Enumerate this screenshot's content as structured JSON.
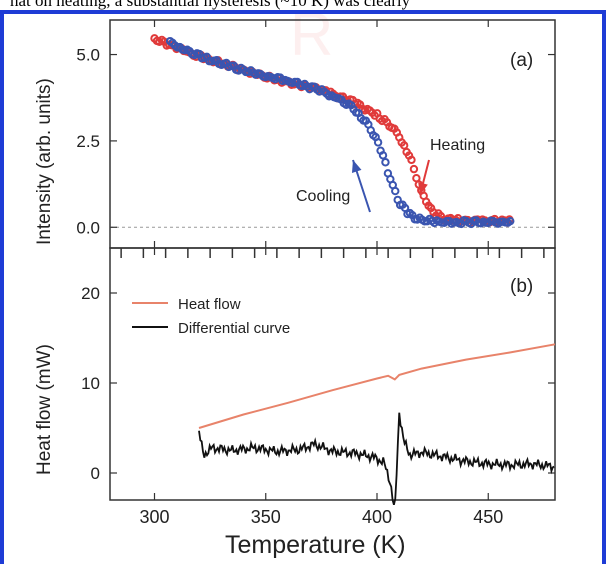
{
  "header_text": "hat on heating, a substantial hysteresis (~10 K) was clearly",
  "colors": {
    "frame": "#1e3cd6",
    "heating": "#e03a3a",
    "cooling": "#3a55b0",
    "heat_flow": "#e8836a",
    "diff": "#111111"
  },
  "chart_data": [
    {
      "type": "scatter",
      "panel_label": "(a)",
      "ylabel": "Intensity (arb. units)",
      "xlim": [
        280,
        480
      ],
      "ylim": [
        -0.6,
        6.0
      ],
      "x_ticks": [
        300,
        350,
        400,
        450
      ],
      "y_ticks": [
        0.0,
        2.5,
        5.0
      ],
      "y_tick_labels": [
        "0.0",
        "2.5",
        "5.0"
      ],
      "dashed_zero_line": true,
      "series": [
        {
          "name": "Heating",
          "x": [
            300,
            310,
            320,
            330,
            340,
            350,
            360,
            370,
            380,
            390,
            400,
            405,
            410,
            415,
            420,
            425,
            430,
            440,
            450,
            460
          ],
          "y": [
            5.45,
            5.2,
            4.95,
            4.75,
            4.55,
            4.35,
            4.2,
            4.05,
            3.85,
            3.6,
            3.25,
            3.0,
            2.65,
            2.0,
            1.0,
            0.45,
            0.25,
            0.18,
            0.18,
            0.18
          ]
        },
        {
          "name": "Cooling",
          "x": [
            307,
            315,
            325,
            335,
            345,
            355,
            365,
            375,
            385,
            390,
            395,
            400,
            403,
            406,
            410,
            415,
            420,
            430,
            440,
            450,
            460
          ],
          "y": [
            5.35,
            5.1,
            4.85,
            4.65,
            4.45,
            4.3,
            4.15,
            3.95,
            3.65,
            3.4,
            3.05,
            2.5,
            2.0,
            1.4,
            0.7,
            0.35,
            0.2,
            0.15,
            0.15,
            0.15,
            0.15
          ]
        }
      ],
      "annotations": [
        "Heating",
        "Cooling"
      ]
    },
    {
      "type": "line",
      "panel_label": "(b)",
      "ylabel": "Heat flow (mW)",
      "xlabel": "Temperature (K)",
      "xlim": [
        280,
        480
      ],
      "ylim": [
        -3,
        25
      ],
      "x_ticks": [
        300,
        350,
        400,
        450
      ],
      "x_tick_labels": [
        "300",
        "350",
        "400",
        "450"
      ],
      "y_ticks": [
        0,
        10,
        20
      ],
      "y_tick_labels": [
        "0",
        "10",
        "20"
      ],
      "legend": [
        "Heat flow",
        "Differential curve"
      ],
      "legend_position": "top-left",
      "series": [
        {
          "name": "Heat flow",
          "x": [
            320,
            340,
            360,
            380,
            400,
            405,
            408,
            410,
            420,
            440,
            460,
            480
          ],
          "y": [
            5.0,
            6.5,
            7.8,
            9.2,
            10.5,
            10.8,
            10.4,
            10.9,
            11.6,
            12.6,
            13.4,
            14.3
          ]
        },
        {
          "name": "Differential curve",
          "x": [
            320,
            322,
            326,
            335,
            345,
            355,
            365,
            372,
            380,
            390,
            398,
            403,
            406,
            408,
            410,
            412,
            415,
            420,
            430,
            440,
            450,
            460,
            470,
            480
          ],
          "y": [
            4.5,
            2.0,
            2.8,
            2.5,
            2.8,
            2.4,
            2.6,
            3.2,
            2.4,
            2.2,
            1.8,
            1.2,
            -1.0,
            -4.5,
            6.8,
            3.5,
            2.0,
            2.3,
            1.8,
            1.3,
            1.0,
            0.9,
            1.0,
            0.7
          ]
        }
      ]
    }
  ]
}
